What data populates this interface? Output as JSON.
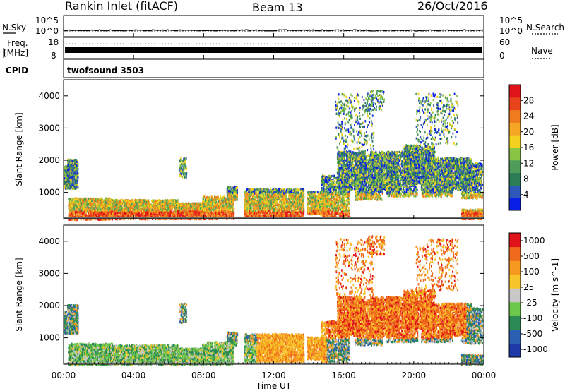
{
  "header": {
    "station": "Rankin Inlet (fitACF)",
    "beam": "Beam 13",
    "date": "26/Oct/2016"
  },
  "top_panels": {
    "nsky_label": "N.Sky",
    "nsearch_label": "N.Search",
    "nsky_ticks": [
      "10^5",
      "10^0"
    ],
    "nsearch_ticks": [
      "10^5",
      "10^0"
    ],
    "freq_label_line1": "Freq.",
    "freq_label_line2": "[MHz]",
    "freq_ticks": [
      "18",
      "8"
    ],
    "nave_label": "Nave",
    "nave_ticks": [
      "60",
      "0"
    ],
    "cpid_label": "CPID",
    "cpid_value": "twofsound 3503"
  },
  "chart_data": [
    {
      "type": "heatmap",
      "title": "",
      "xlabel": "Time UT",
      "ylabel": "Slant Range [km]",
      "x_ticks": [
        "00:00",
        "04:00",
        "08:00",
        "12:00",
        "16:00",
        "20:00",
        "00:00"
      ],
      "y_ticks": [
        "1000",
        "2000",
        "3000",
        "4000"
      ],
      "xlim": [
        0,
        24
      ],
      "ylim": [
        180,
        4500
      ],
      "colorbar": {
        "label": "Power [dB]",
        "ticks": [
          "4",
          "8",
          "12",
          "16",
          "20",
          "24",
          "28"
        ],
        "colors": [
          "#0a1fe6",
          "#2d57b8",
          "#2a7d55",
          "#4f9b5a",
          "#8ac445",
          "#f2d21f",
          "#f5a623",
          "#f07a1e",
          "#e8431a",
          "#e0121a"
        ]
      }
    },
    {
      "type": "heatmap",
      "title": "",
      "xlabel": "Time UT",
      "ylabel": "Slant Range [km]",
      "x_ticks": [
        "00:00",
        "04:00",
        "08:00",
        "12:00",
        "16:00",
        "20:00",
        "00:00"
      ],
      "y_ticks": [
        "1000",
        "2000",
        "3000",
        "4000"
      ],
      "xlim": [
        0,
        24
      ],
      "ylim": [
        180,
        4500
      ],
      "colorbar": {
        "label": "Velocity [m s^-1]",
        "ticks": [
          "1000",
          "500",
          "100",
          "25",
          "-25",
          "-100",
          "-500",
          "-1000"
        ],
        "colors": [
          "#1f3aa8",
          "#2b5fb0",
          "#2c8a55",
          "#6cc84a",
          "#c8c8c8",
          "#f7c52a",
          "#f59a1f",
          "#ef6a1b",
          "#e0121a"
        ]
      }
    }
  ]
}
